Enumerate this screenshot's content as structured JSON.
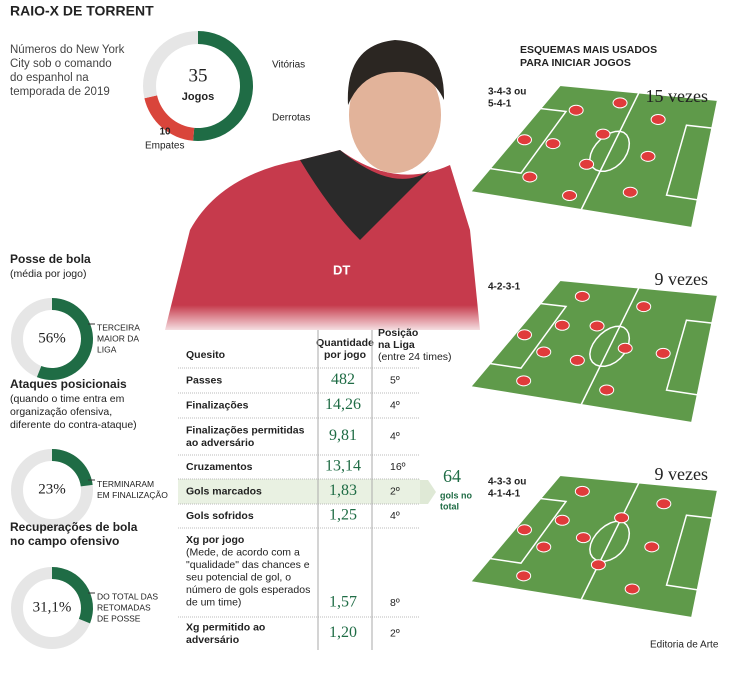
{
  "header": {
    "title": "RAIO-X DE TORRENT",
    "subtitle_lines": [
      "Números do New York",
      "City sob o comando",
      "do espanhol na",
      "temporada de 2019"
    ]
  },
  "chart_data": [
    {
      "type": "donut",
      "categories": [
        "Vitórias",
        "Derrotas",
        "Empates"
      ],
      "values": [
        18,
        7,
        10
      ],
      "colors": [
        "#1f6c45",
        "#d9453b",
        "#e6e6e6"
      ],
      "center_value": 35,
      "center_label": "Jogos"
    },
    {
      "type": "donut",
      "title_lines": [
        "Posse de bola"
      ],
      "subtitle_lines": [
        "(média por jogo)"
      ],
      "values": [
        56
      ],
      "value_labels": [
        "56%"
      ],
      "color": "#1f6c45",
      "note_lines": [
        "TERCEIRA",
        "MAIOR DA",
        "LIGA"
      ]
    },
    {
      "type": "donut",
      "title_lines": [
        "Ataques posicionais"
      ],
      "subtitle_lines": [
        "(quando o time entra em",
        "organização ofensiva,",
        "diferente do contra-ataque)"
      ],
      "values": [
        23
      ],
      "value_labels": [
        "23%"
      ],
      "color": "#1f6c45",
      "note_lines": [
        "TERMINARAM",
        "EM FINALIZAÇÃO"
      ]
    },
    {
      "type": "donut",
      "title_lines": [
        "Recuperações de bola",
        "no campo ofensivo"
      ],
      "subtitle_lines": [],
      "values": [
        31.1
      ],
      "value_labels": [
        "31,1%"
      ],
      "color": "#1f6c45",
      "note_lines": [
        "DO TOTAL DAS",
        "RETOMADAS",
        "DE POSSE"
      ]
    }
  ],
  "table": {
    "headers": [
      [
        "Quesito"
      ],
      [
        "Quantidade",
        "por jogo"
      ],
      [
        "Posição",
        "na Liga",
        "(entre 24 times)"
      ]
    ],
    "rows": [
      {
        "label_lines": [
          "Passes"
        ],
        "value": "482",
        "position": "5º"
      },
      {
        "label_lines": [
          "Finalizações"
        ],
        "value": "14,26",
        "position": "4º"
      },
      {
        "label_lines": [
          "Finalizações permitidas",
          "ao adversário"
        ],
        "value": "9,81",
        "position": "4º"
      },
      {
        "label_lines": [
          "Cruzamentos"
        ],
        "value": "13,14",
        "position": "16º"
      },
      {
        "label_lines": [
          "Gols marcados"
        ],
        "value": "1,83",
        "position": "2º"
      },
      {
        "label_lines": [
          "Gols sofridos"
        ],
        "value": "1,25",
        "position": "4º"
      },
      {
        "label_lines": [
          "Xg por jogo",
          "(Mede, de acordo com a",
          "\"qualidade\" das chances e",
          "seu potencial de gol, o",
          "número de gols esperados",
          "de um time)"
        ],
        "value": "1,57",
        "position": "8º"
      },
      {
        "label_lines": [
          "Xg permitido ao",
          "adversário"
        ],
        "value": "1,20",
        "position": "2º"
      }
    ],
    "highlight_row": 4
  },
  "callout": {
    "value": "64",
    "lines": [
      "gols no",
      "total"
    ]
  },
  "formations": {
    "title_lines": [
      "ESQUEMAS MAIS USADOS",
      "PARA INICIAR JOGOS"
    ],
    "items": [
      {
        "label_lines": [
          "3-4-3 ou",
          "5-4-1"
        ],
        "count": "15 vezes"
      },
      {
        "label_lines": [
          "4-2-3-1"
        ],
        "count": "9 vezes"
      },
      {
        "label_lines": [
          "4-3-3 ou",
          "4-1-4-1"
        ],
        "count": "9 vezes"
      }
    ]
  },
  "photo_text": "DT",
  "footer": "Editoria de Arte"
}
